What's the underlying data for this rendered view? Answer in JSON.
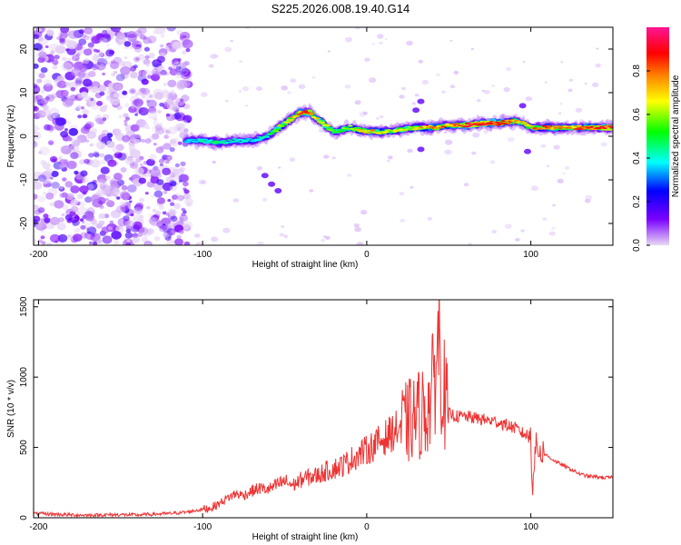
{
  "title": "S225.2026.008.19.40.G14",
  "colors": {
    "snr_line": "#ee3333",
    "axis": "#000000"
  },
  "chart_data": [
    {
      "type": "heatmap",
      "xlabel": "Height of straight line (km)",
      "ylabel": "Frequency (Hz)",
      "xlim": [
        -203,
        150
      ],
      "ylim": [
        -25,
        25
      ],
      "x_ticks": [
        -200,
        -100,
        0,
        100
      ],
      "y_ticks": [
        -20,
        -10,
        0,
        10,
        20
      ],
      "y_tick_labels": [
        "-20",
        "-10",
        "0",
        "10",
        "20"
      ],
      "colorbar": {
        "label": "Normalized spectral amplitude",
        "range": [
          0,
          1
        ],
        "ticks": [
          0.0,
          0.2,
          0.4,
          0.6,
          0.8
        ],
        "tick_labels": [
          "0.0",
          "0.2",
          "0.4",
          "0.6",
          "0.8"
        ],
        "colormap": [
          "#e8d8f4",
          "#7a00ff",
          "#0000ff",
          "#00ffff",
          "#00ff00",
          "#ffff00",
          "#ff8000",
          "#ff0000",
          "#ff1493"
        ]
      },
      "noise_region_x": [
        -203,
        -108
      ],
      "ridge": {
        "x": [
          -110,
          -100,
          -90,
          -80,
          -70,
          -60,
          -50,
          -40,
          -35,
          -30,
          -20,
          -10,
          0,
          10,
          20,
          30,
          40,
          50,
          60,
          70,
          80,
          90,
          95,
          100,
          110,
          120,
          130,
          140,
          150
        ],
        "freq": [
          -1,
          -1,
          -1.5,
          -1,
          -1,
          0,
          3,
          5.5,
          5.5,
          4,
          1,
          2,
          1,
          1,
          1.5,
          2,
          2,
          2.5,
          2.5,
          3,
          3,
          3.5,
          3,
          2,
          2,
          2,
          2,
          2,
          2
        ],
        "amplitude": [
          0.25,
          0.3,
          0.35,
          0.3,
          0.25,
          0.35,
          0.55,
          0.8,
          0.85,
          0.6,
          0.45,
          0.5,
          0.7,
          0.6,
          0.55,
          0.6,
          0.75,
          0.7,
          0.85,
          0.9,
          0.85,
          0.7,
          0.65,
          0.7,
          0.75,
          0.7,
          0.75,
          0.8,
          0.85
        ]
      }
    },
    {
      "type": "line",
      "xlabel": "Height of straight line (km)",
      "ylabel": "SNR (10 * v/v)",
      "xlim": [
        -203,
        150
      ],
      "ylim": [
        0,
        1550
      ],
      "x_ticks": [
        -200,
        -100,
        0,
        100
      ],
      "y_ticks": [
        0,
        500,
        1000,
        1500
      ],
      "series": [
        {
          "x": [
            -203,
            -190,
            -180,
            -170,
            -160,
            -150,
            -140,
            -130,
            -120,
            -110,
            -100,
            -95,
            -90,
            -85,
            -80,
            -75,
            -70,
            -65,
            -60,
            -55,
            -50,
            -45,
            -40,
            -35,
            -30,
            -25,
            -20,
            -15,
            -10,
            -5,
            0,
            5,
            10,
            15,
            20,
            25,
            30,
            35,
            38,
            40,
            42,
            44,
            46,
            48,
            50,
            55,
            60,
            65,
            70,
            75,
            80,
            85,
            90,
            95,
            100,
            101,
            102,
            103,
            105,
            110,
            115,
            120,
            125,
            130,
            135,
            140,
            145,
            150
          ],
          "values": [
            30,
            25,
            20,
            18,
            20,
            22,
            20,
            25,
            30,
            40,
            60,
            70,
            100,
            140,
            170,
            160,
            190,
            210,
            200,
            230,
            260,
            230,
            270,
            290,
            300,
            330,
            350,
            370,
            410,
            450,
            480,
            520,
            560,
            600,
            640,
            680,
            720,
            760,
            800,
            900,
            1100,
            1300,
            1000,
            820,
            740,
            720,
            720,
            710,
            700,
            690,
            680,
            660,
            640,
            600,
            580,
            200,
            420,
            500,
            480,
            440,
            400,
            370,
            340,
            310,
            295,
            290,
            285,
            285
          ]
        }
      ]
    }
  ]
}
